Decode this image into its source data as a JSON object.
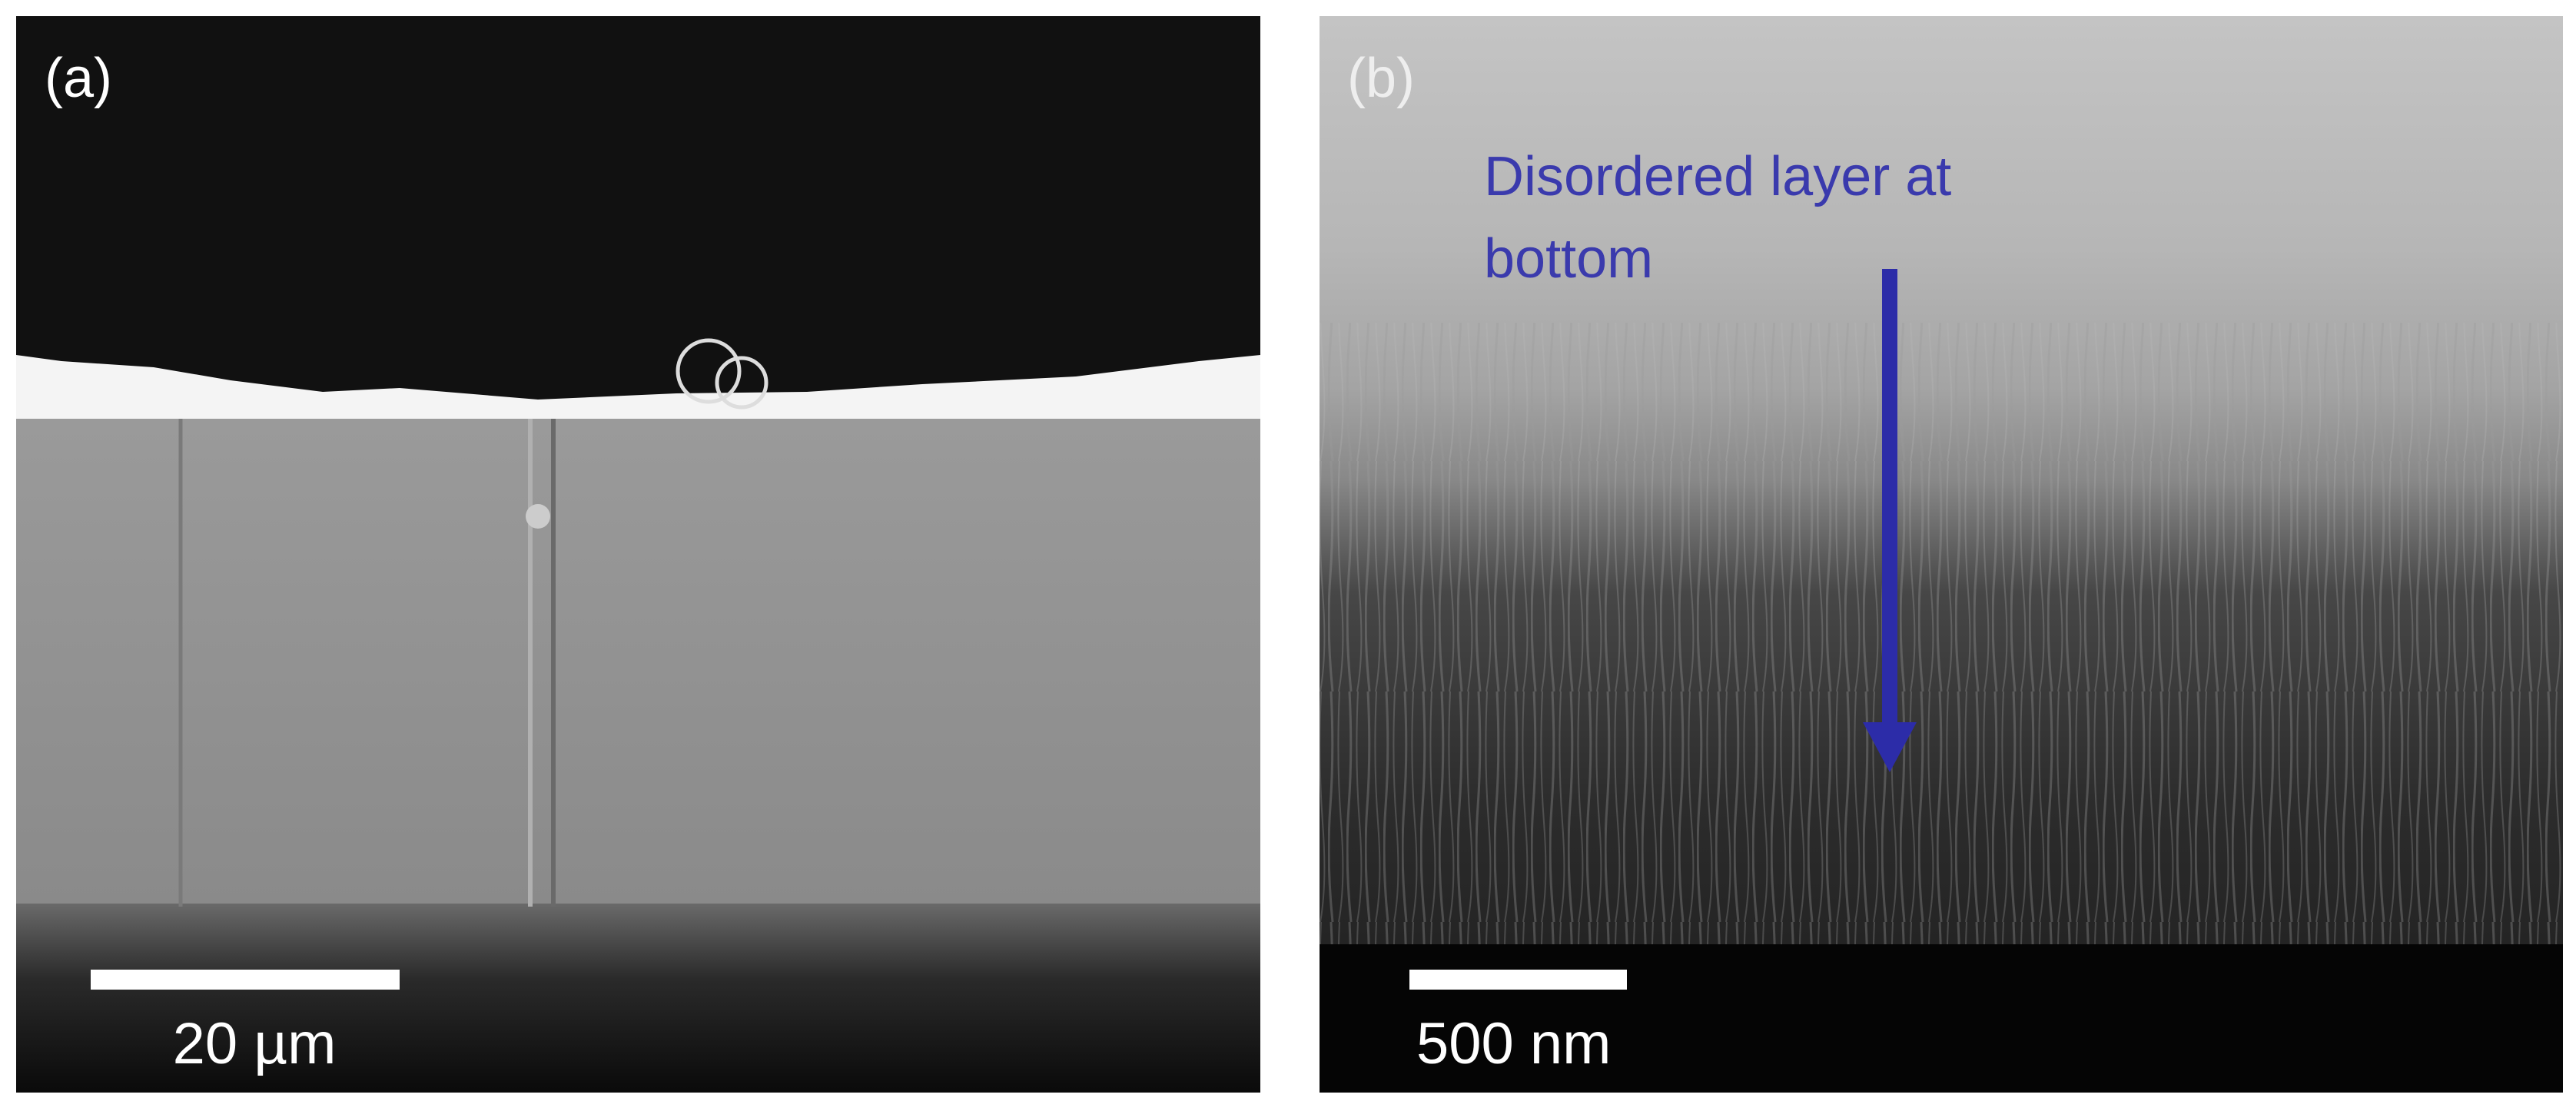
{
  "panels": [
    {
      "label": "(a)",
      "scale_bar": "20 µm"
    },
    {
      "label": "(b)",
      "scale_bar": "500 nm",
      "annotation": [
        "Disordered layer at",
        "bottom"
      ]
    }
  ]
}
